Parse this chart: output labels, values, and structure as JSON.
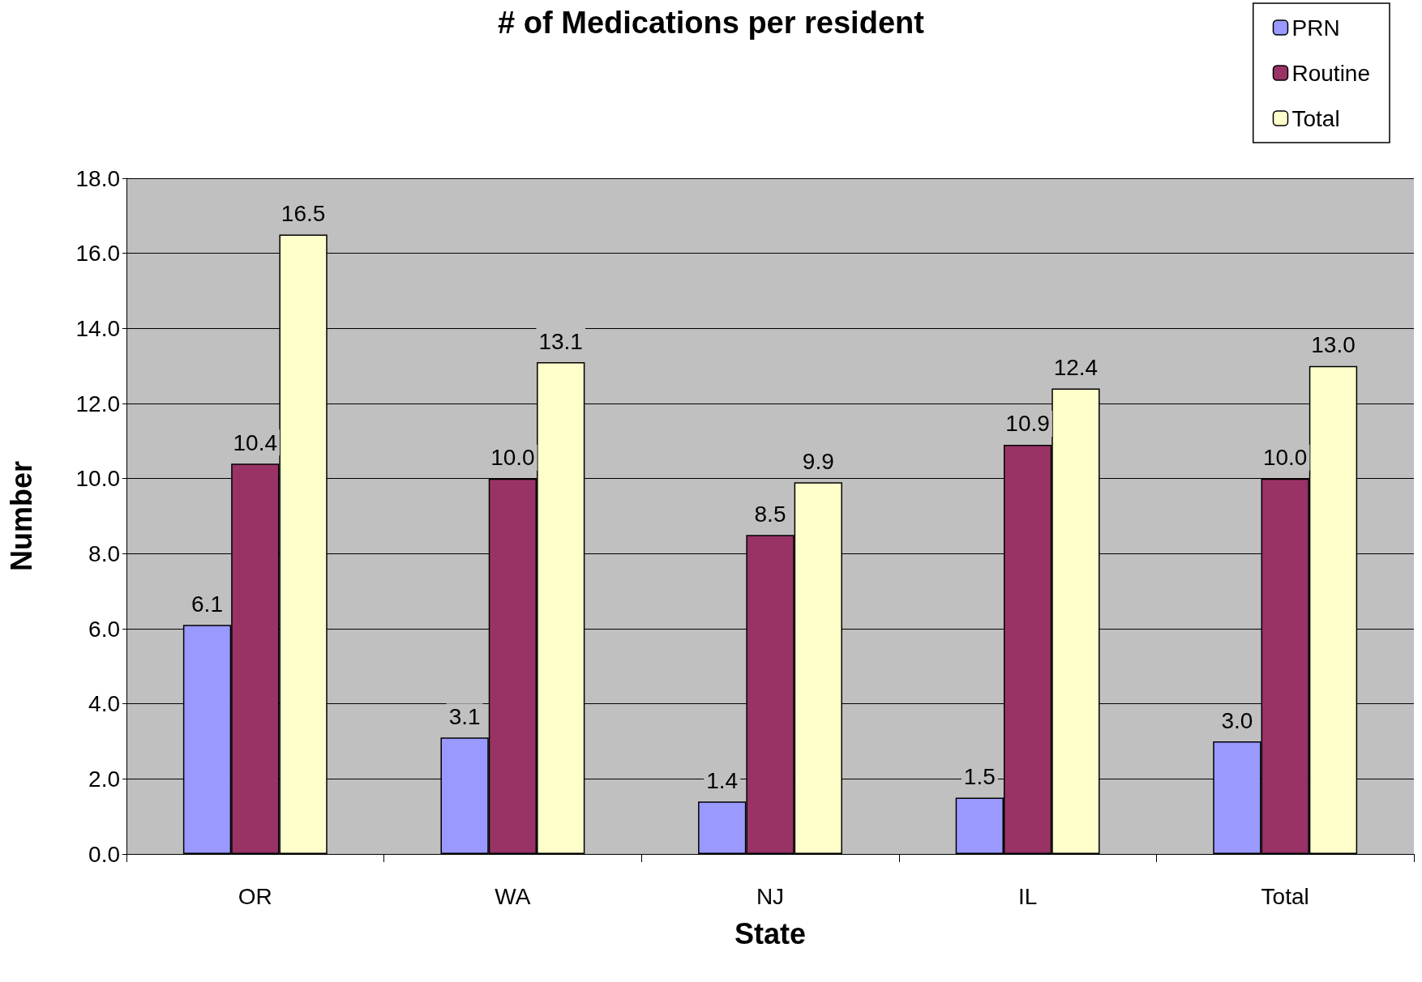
{
  "chart_data": {
    "type": "bar",
    "title": "# of Medications per resident",
    "xlabel": "State",
    "ylabel": "Number",
    "categories": [
      "OR",
      "WA",
      "NJ",
      "IL",
      "Total"
    ],
    "series": [
      {
        "name": "PRN",
        "color": "#9999ff",
        "values": [
          6.1,
          3.1,
          1.4,
          1.5,
          3.0
        ],
        "value_labels": [
          "6.1",
          "3.1",
          "1.4",
          "1.5",
          "3.0"
        ]
      },
      {
        "name": "Routine",
        "color": "#993366",
        "values": [
          10.4,
          10.0,
          8.5,
          10.9,
          10.0
        ],
        "value_labels": [
          "10.4",
          "10.0",
          "8.5",
          "10.9",
          "10.0"
        ]
      },
      {
        "name": "Total",
        "color": "#ffffcc",
        "values": [
          16.5,
          13.1,
          9.9,
          12.4,
          13.0
        ],
        "value_labels": [
          "16.5",
          "13.1",
          "9.9",
          "12.4",
          "13.0"
        ]
      }
    ],
    "ylim": [
      0,
      18
    ],
    "yticks": [
      {
        "value": 0,
        "label": "0.0"
      },
      {
        "value": 2,
        "label": "2.0"
      },
      {
        "value": 4,
        "label": "4.0"
      },
      {
        "value": 6,
        "label": "6.0"
      },
      {
        "value": 8,
        "label": "8.0"
      },
      {
        "value": 10,
        "label": "10.0"
      },
      {
        "value": 12,
        "label": "12.0"
      },
      {
        "value": 14,
        "label": "14.0"
      },
      {
        "value": 16,
        "label": "16.0"
      },
      {
        "value": 18,
        "label": "18.0"
      }
    ],
    "grid": "y",
    "legend": "top right"
  }
}
